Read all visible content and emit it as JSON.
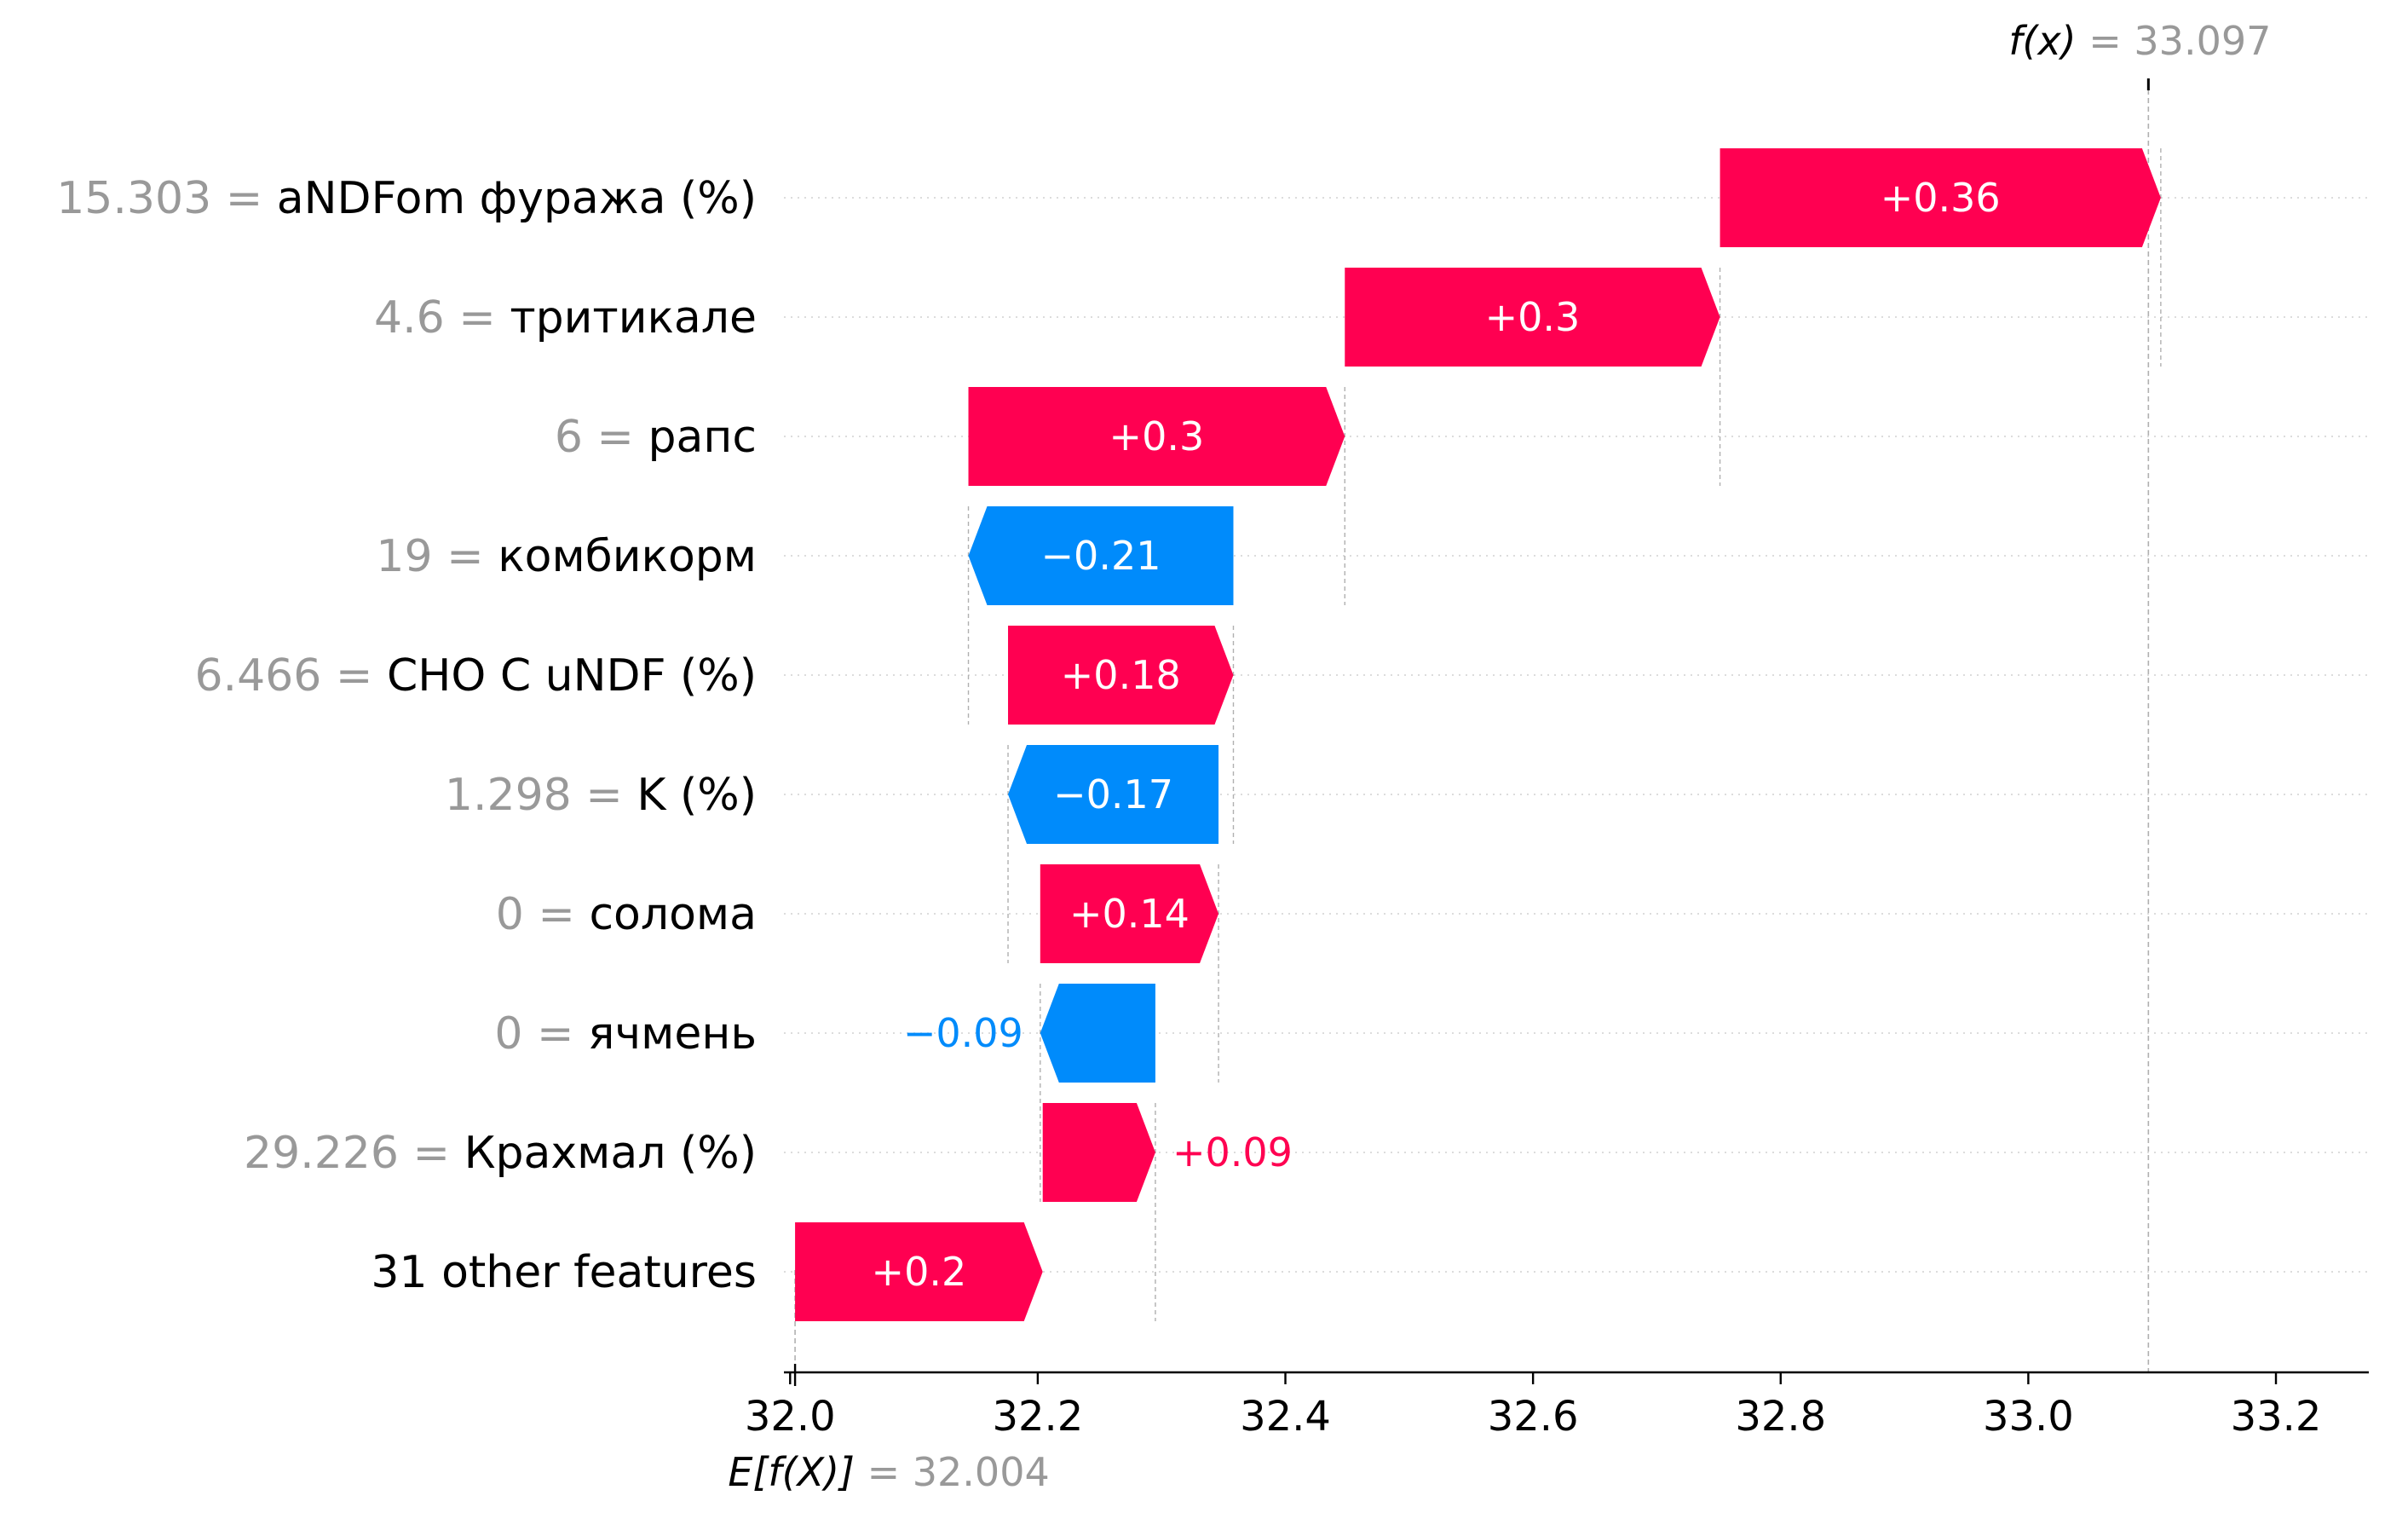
{
  "chart_data": {
    "type": "waterfall",
    "base_value": 32.004,
    "base_label": "E[f(X)]",
    "base_value_text": "= 32.004",
    "output_value": 33.097,
    "output_label": "f(x)",
    "output_value_text": "= 33.097",
    "xlim": [
      31.995,
      33.275
    ],
    "x_ticks": [
      32.0,
      32.2,
      32.4,
      32.6,
      32.8,
      33.0,
      33.2
    ],
    "x_tick_labels": [
      "32.0",
      "32.2",
      "32.4",
      "32.6",
      "32.8",
      "33.0",
      "33.2"
    ],
    "colors": {
      "positive": "#ff0051",
      "negative": "#008bfb",
      "value_text": "#999999",
      "feature_text": "#000000"
    },
    "features": [
      {
        "value": "15.303 =",
        "name": "aNDFom фуража (%)",
        "shap": 0.356,
        "label": "+0.36"
      },
      {
        "value": "4.6 =",
        "name": "тритикале",
        "shap": 0.303,
        "label": "+0.3"
      },
      {
        "value": "6 =",
        "name": "рапс",
        "shap": 0.304,
        "label": "+0.3"
      },
      {
        "value": "19 =",
        "name": "комбикорм",
        "shap": -0.214,
        "label": "−0.21"
      },
      {
        "value": "6.466 =",
        "name": "CHO C uNDF (%)",
        "shap": 0.182,
        "label": "+0.18"
      },
      {
        "value": "1.298 =",
        "name": "K (%)",
        "shap": -0.17,
        "label": "−0.17"
      },
      {
        "value": "0 =",
        "name": "солома",
        "shap": 0.144,
        "label": "+0.14"
      },
      {
        "value": "0 =",
        "name": "ячмень",
        "shap": -0.093,
        "label": "−0.09"
      },
      {
        "value": "29.226 =",
        "name": "Крахмал (%)",
        "shap": 0.091,
        "label": "+0.09"
      },
      {
        "value": "",
        "name": "31 other features",
        "shap": 0.2,
        "label": "+0.2"
      }
    ]
  }
}
